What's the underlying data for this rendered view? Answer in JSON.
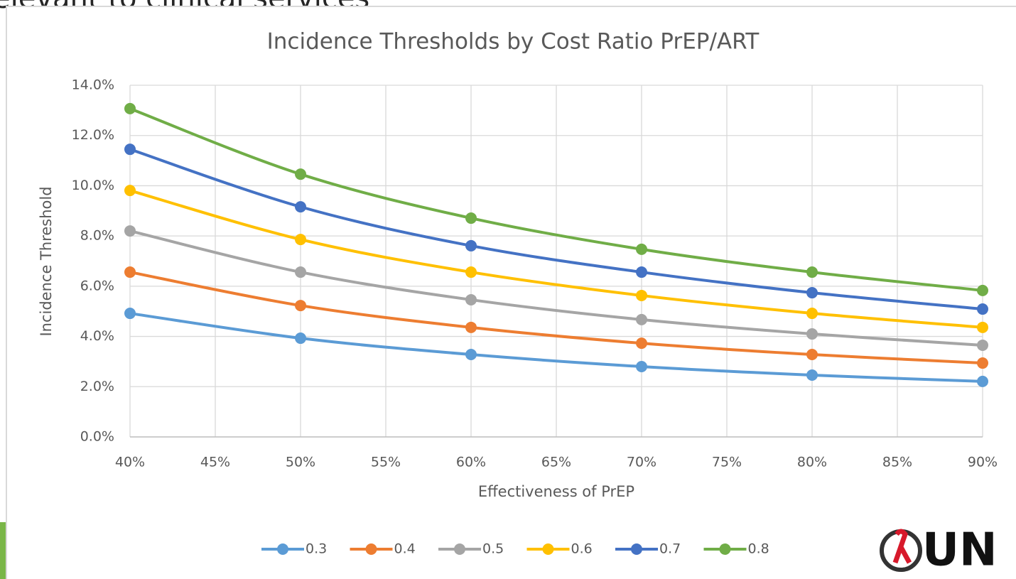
{
  "header": {
    "text": "elevant to clinical services"
  },
  "logo": {
    "text": "UN"
  },
  "chart_data": {
    "type": "line",
    "title": "Incidence Thresholds by Cost Ratio PrEP/ART",
    "x_label": "Effectiveness of PrEP",
    "y_label": "Incidence Threshold",
    "x": [
      40,
      50,
      60,
      70,
      80,
      90
    ],
    "series": [
      {
        "name": "0.3",
        "color": "#5b9bd5",
        "values": [
          4.92,
          3.93,
          3.28,
          2.8,
          2.46,
          2.21
        ]
      },
      {
        "name": "0.4",
        "color": "#ed7d31",
        "values": [
          6.56,
          5.23,
          4.36,
          3.73,
          3.28,
          2.94
        ]
      },
      {
        "name": "0.5",
        "color": "#a5a5a5",
        "values": [
          8.2,
          6.56,
          5.46,
          4.67,
          4.1,
          3.65
        ]
      },
      {
        "name": "0.6",
        "color": "#ffc000",
        "values": [
          9.81,
          7.86,
          6.56,
          5.63,
          4.92,
          4.36
        ]
      },
      {
        "name": "0.7",
        "color": "#4472c4",
        "values": [
          11.45,
          9.16,
          7.61,
          6.56,
          5.74,
          5.09
        ]
      },
      {
        "name": "0.8",
        "color": "#70ad47",
        "values": [
          13.07,
          10.46,
          8.71,
          7.47,
          6.56,
          5.83
        ]
      }
    ],
    "xlim": [
      40,
      90
    ],
    "xticks": [
      {
        "value": 40,
        "label": "40%"
      },
      {
        "value": 45,
        "label": "45%"
      },
      {
        "value": 50,
        "label": "50%"
      },
      {
        "value": 55,
        "label": "55%"
      },
      {
        "value": 60,
        "label": "60%"
      },
      {
        "value": 65,
        "label": "65%"
      },
      {
        "value": 70,
        "label": "70%"
      },
      {
        "value": 75,
        "label": "75%"
      },
      {
        "value": 80,
        "label": "80%"
      },
      {
        "value": 85,
        "label": "85%"
      },
      {
        "value": 90,
        "label": "90%"
      }
    ],
    "ylim": [
      0,
      14
    ],
    "yticks": [
      {
        "value": 0,
        "label": "0.0%"
      },
      {
        "value": 2,
        "label": "2.0%"
      },
      {
        "value": 4,
        "label": "4.0%"
      },
      {
        "value": 6,
        "label": "6.0%"
      },
      {
        "value": 8,
        "label": "8.0%"
      },
      {
        "value": 10,
        "label": "10.0%"
      },
      {
        "value": 12,
        "label": "12.0%"
      },
      {
        "value": 14,
        "label": "14.0%"
      }
    ],
    "grid": true,
    "smooth": true,
    "legend": "bottom"
  }
}
